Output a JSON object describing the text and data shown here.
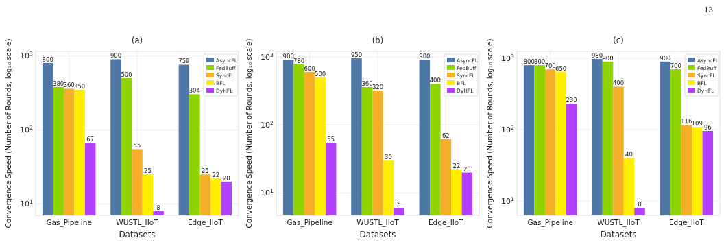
{
  "chart_data": [
    {
      "type": "bar",
      "title": "(a)",
      "xlabel": "Datasets",
      "ylabel": "Convergence Speed (Number of Rounds, log₁₀ scale)",
      "categories": [
        "Gas_Pipeline",
        "WUSTL_IIoT",
        "Edge_IIoT"
      ],
      "log": true,
      "ylim": [
        7,
        1150
      ],
      "yticks": [
        {
          "value": 10,
          "label": "10$^{1}$"
        },
        {
          "value": 100,
          "label": "10$^{2}$"
        },
        {
          "value": 1000,
          "label": "10$^{3}$"
        }
      ],
      "grid": true,
      "legend": "top right",
      "data_labels": true,
      "series": [
        {
          "name": "AsyncFL",
          "color": "#4e79a7",
          "values": [
            800,
            900,
            759
          ]
        },
        {
          "name": "FedBuff",
          "color": "#8fd400",
          "values": [
            380,
            500,
            304
          ]
        },
        {
          "name": "SyncFL",
          "color": "#f5ae2a",
          "values": [
            360,
            55,
            25
          ]
        },
        {
          "name": "BFL",
          "color": "#ffee00",
          "values": [
            350,
            25,
            22
          ]
        },
        {
          "name": "DyHFL",
          "color": "#b340ff",
          "values": [
            67,
            8,
            20
          ]
        }
      ]
    },
    {
      "type": "bar",
      "title": "(b)",
      "xlabel": "Datasets",
      "ylabel": "Convergence Speed (Number of Rounds, log₁₀ scale)",
      "categories": [
        "Gas_Pipeline",
        "WUSTL_IIoT",
        "Edge_IIoT"
      ],
      "log": true,
      "ylim": [
        4.7,
        1200
      ],
      "yticks": [
        {
          "value": 10,
          "label": "10$^{1}$"
        },
        {
          "value": 100,
          "label": "10$^{2}$"
        },
        {
          "value": 1000,
          "label": "10$^{3}$"
        }
      ],
      "grid": true,
      "legend": "top right",
      "data_labels": true,
      "series": [
        {
          "name": "AsyncFL",
          "color": "#4e79a7",
          "values": [
            900,
            950,
            900
          ]
        },
        {
          "name": "FedBuff",
          "color": "#8fd400",
          "values": [
            780,
            360,
            400
          ]
        },
        {
          "name": "SyncFL",
          "color": "#f5ae2a",
          "values": [
            600,
            320,
            62
          ]
        },
        {
          "name": "BFL",
          "color": "#ffee00",
          "values": [
            500,
            30,
            22
          ]
        },
        {
          "name": "DyHFL",
          "color": "#b340ff",
          "values": [
            55,
            6,
            20
          ]
        }
      ]
    },
    {
      "type": "bar",
      "title": "(c)",
      "xlabel": "Datasets",
      "ylabel": "Convergence Speed (Number of Rounds, log₁₀ scale)",
      "categories": [
        "Gas_Pipeline",
        "WUSTL_IIoT",
        "Edge_IIoT"
      ],
      "log": true,
      "ylim": [
        6.3,
        1250
      ],
      "yticks": [
        {
          "value": 10,
          "label": "10$^{1}$"
        },
        {
          "value": 100,
          "label": "10$^{2}$"
        },
        {
          "value": 1000,
          "label": "10$^{3}$"
        }
      ],
      "grid": true,
      "legend": "top right",
      "data_labels": true,
      "annotations": [
        "13"
      ],
      "series": [
        {
          "name": "AsyncFL",
          "color": "#4e79a7",
          "values": [
            800,
            980,
            900
          ]
        },
        {
          "name": "FedBuff",
          "color": "#8fd400",
          "values": [
            800,
            900,
            700
          ]
        },
        {
          "name": "SyncFL",
          "color": "#f5ae2a",
          "values": [
            700,
            400,
            116
          ]
        },
        {
          "name": "BFL",
          "color": "#ffee00",
          "values": [
            650,
            40,
            109
          ]
        },
        {
          "name": "DyHFL",
          "color": "#b340ff",
          "values": [
            230,
            8,
            96
          ]
        }
      ]
    }
  ]
}
